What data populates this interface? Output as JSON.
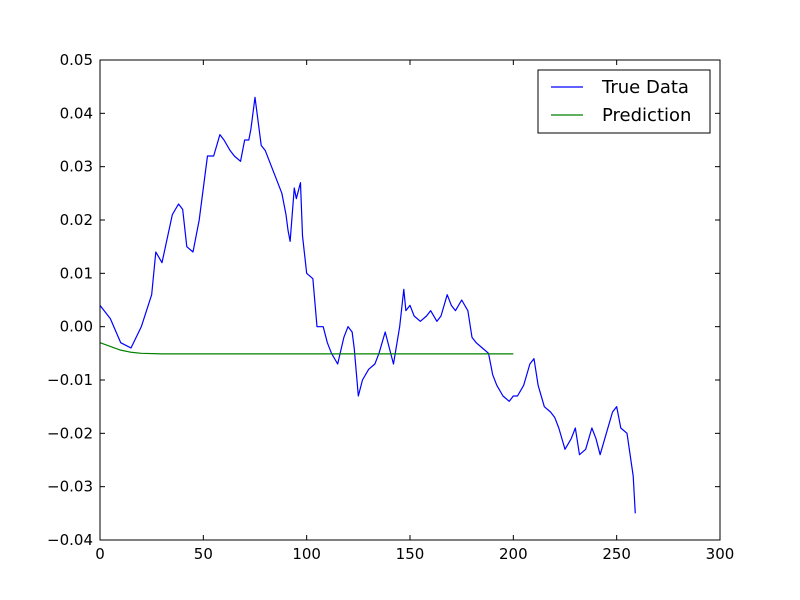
{
  "chart_data": {
    "type": "line",
    "title": "",
    "xlabel": "",
    "ylabel": "",
    "xlim": [
      0,
      300
    ],
    "ylim": [
      -0.04,
      0.05
    ],
    "xticks": [
      0,
      50,
      100,
      150,
      200,
      250,
      300
    ],
    "yticks": [
      -0.04,
      -0.03,
      -0.02,
      -0.01,
      0.0,
      0.01,
      0.02,
      0.03,
      0.04,
      0.05
    ],
    "xtick_labels": [
      "0",
      "50",
      "100",
      "150",
      "200",
      "250",
      "300"
    ],
    "ytick_labels": [
      "−0.04",
      "−0.03",
      "−0.02",
      "−0.01",
      "0.00",
      "0.01",
      "0.02",
      "0.03",
      "0.04",
      "0.05"
    ],
    "grid": false,
    "legend_position": "top-right",
    "series": [
      {
        "name": "True Data",
        "color": "#0000ff",
        "x": [
          0,
          5,
          10,
          15,
          20,
          25,
          27,
          30,
          35,
          38,
          40,
          42,
          45,
          48,
          50,
          52,
          55,
          58,
          60,
          63,
          65,
          68,
          70,
          72,
          73,
          75,
          78,
          80,
          83,
          85,
          88,
          90,
          91,
          92,
          94,
          95,
          97,
          98,
          100,
          103,
          105,
          108,
          110,
          112,
          115,
          118,
          120,
          122,
          123,
          125,
          127,
          130,
          133,
          135,
          138,
          140,
          142,
          145,
          147,
          148,
          150,
          152,
          155,
          158,
          160,
          163,
          165,
          168,
          170,
          172,
          175,
          178,
          180,
          182,
          185,
          188,
          190,
          192,
          195,
          198,
          200,
          202,
          205,
          208,
          210,
          212,
          215,
          218,
          220,
          222,
          225,
          228,
          230,
          232,
          235,
          238,
          240,
          242,
          245,
          248,
          250,
          252,
          255,
          258,
          259
        ],
        "y": [
          0.004,
          0.0015,
          -0.003,
          -0.004,
          0.0,
          0.006,
          0.014,
          0.012,
          0.021,
          0.023,
          0.022,
          0.015,
          0.014,
          0.02,
          0.026,
          0.032,
          0.032,
          0.036,
          0.035,
          0.033,
          0.032,
          0.031,
          0.035,
          0.035,
          0.037,
          0.043,
          0.034,
          0.033,
          0.03,
          0.028,
          0.025,
          0.021,
          0.018,
          0.016,
          0.026,
          0.024,
          0.027,
          0.017,
          0.01,
          0.009,
          0.0,
          0.0,
          -0.003,
          -0.005,
          -0.007,
          -0.002,
          0.0,
          -0.001,
          -0.004,
          -0.013,
          -0.01,
          -0.008,
          -0.007,
          -0.005,
          -0.001,
          -0.004,
          -0.007,
          0.0,
          0.007,
          0.003,
          0.004,
          0.002,
          0.001,
          0.002,
          0.003,
          0.001,
          0.002,
          0.006,
          0.004,
          0.003,
          0.005,
          0.003,
          -0.002,
          -0.003,
          -0.004,
          -0.005,
          -0.009,
          -0.011,
          -0.013,
          -0.014,
          -0.013,
          -0.013,
          -0.011,
          -0.007,
          -0.006,
          -0.011,
          -0.015,
          -0.016,
          -0.017,
          -0.019,
          -0.023,
          -0.021,
          -0.019,
          -0.024,
          -0.023,
          -0.019,
          -0.021,
          -0.024,
          -0.02,
          -0.016,
          -0.015,
          -0.019,
          -0.02,
          -0.028,
          -0.035
        ]
      },
      {
        "name": "Prediction",
        "color": "#008000",
        "x": [
          0,
          5,
          10,
          15,
          20,
          30,
          50,
          100,
          150,
          200
        ],
        "y": [
          -0.003,
          -0.0037,
          -0.0044,
          -0.0048,
          -0.005,
          -0.0051,
          -0.0051,
          -0.0051,
          -0.0051,
          -0.0051
        ]
      }
    ]
  }
}
